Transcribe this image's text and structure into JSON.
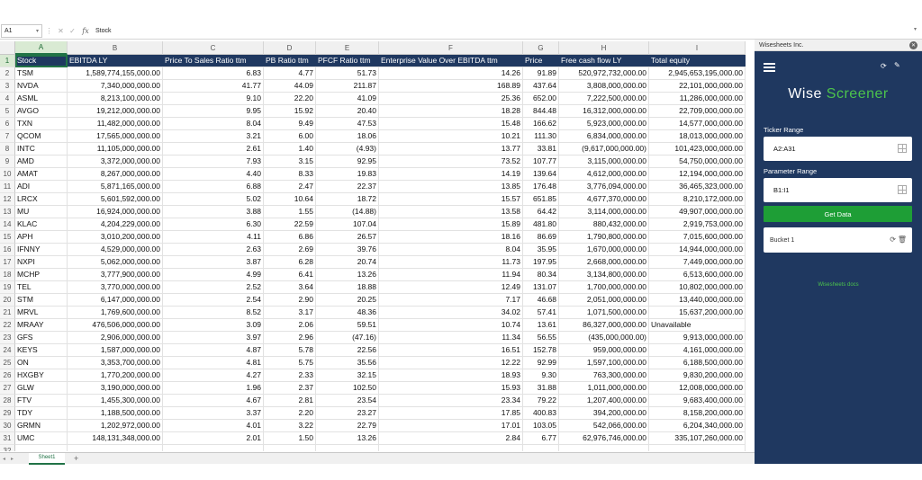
{
  "formula_bar": {
    "name_box": "A1",
    "fx": "fx",
    "content": "Stock"
  },
  "columns": [
    "A",
    "B",
    "C",
    "D",
    "E",
    "F",
    "G",
    "H",
    "I"
  ],
  "headers": [
    "Stock",
    "EBITDA LY",
    "Price To Sales Ratio ttm",
    "PB Ratio ttm",
    "PFCF Ratio ttm",
    "Enterprise Value Over EBITDA ttm",
    "Price",
    "Free cash flow LY",
    "Total equity"
  ],
  "rows": [
    [
      "TSM",
      "1,589,774,155,000.00",
      "6.83",
      "4.77",
      "51.73",
      "14.26",
      "91.89",
      "520,972,732,000.00",
      "2,945,653,195,000.00"
    ],
    [
      "NVDA",
      "7,340,000,000.00",
      "41.77",
      "44.09",
      "211.87",
      "168.89",
      "437.64",
      "3,808,000,000.00",
      "22,101,000,000.00"
    ],
    [
      "ASML",
      "8,213,100,000.00",
      "9.10",
      "22.20",
      "41.09",
      "25.36",
      "652.00",
      "7,222,500,000.00",
      "11,286,000,000.00"
    ],
    [
      "AVGO",
      "19,212,000,000.00",
      "9.95",
      "15.92",
      "20.40",
      "18.28",
      "844.48",
      "16,312,000,000.00",
      "22,709,000,000.00"
    ],
    [
      "TXN",
      "11,482,000,000.00",
      "8.04",
      "9.49",
      "47.53",
      "15.48",
      "166.62",
      "5,923,000,000.00",
      "14,577,000,000.00"
    ],
    [
      "QCOM",
      "17,565,000,000.00",
      "3.21",
      "6.00",
      "18.06",
      "10.21",
      "111.30",
      "6,834,000,000.00",
      "18,013,000,000.00"
    ],
    [
      "INTC",
      "11,105,000,000.00",
      "2.61",
      "1.40",
      "(4.93)",
      "13.77",
      "33.81",
      "(9,617,000,000.00)",
      "101,423,000,000.00"
    ],
    [
      "AMD",
      "3,372,000,000.00",
      "7.93",
      "3.15",
      "92.95",
      "73.52",
      "107.77",
      "3,115,000,000.00",
      "54,750,000,000.00"
    ],
    [
      "AMAT",
      "8,267,000,000.00",
      "4.40",
      "8.33",
      "19.83",
      "14.19",
      "139.64",
      "4,612,000,000.00",
      "12,194,000,000.00"
    ],
    [
      "ADI",
      "5,871,165,000.00",
      "6.88",
      "2.47",
      "22.37",
      "13.85",
      "176.48",
      "3,776,094,000.00",
      "36,465,323,000.00"
    ],
    [
      "LRCX",
      "5,601,592,000.00",
      "5.02",
      "10.64",
      "18.72",
      "15.57",
      "651.85",
      "4,677,370,000.00",
      "8,210,172,000.00"
    ],
    [
      "MU",
      "16,924,000,000.00",
      "3.88",
      "1.55",
      "(14.88)",
      "13.58",
      "64.42",
      "3,114,000,000.00",
      "49,907,000,000.00"
    ],
    [
      "KLAC",
      "4,204,229,000.00",
      "6.30",
      "22.59",
      "107.04",
      "15.89",
      "481.80",
      "880,432,000.00",
      "2,919,753,000.00"
    ],
    [
      "APH",
      "3,010,200,000.00",
      "4.11",
      "6.86",
      "26.57",
      "18.16",
      "86.69",
      "1,790,800,000.00",
      "7,015,600,000.00"
    ],
    [
      "IFNNY",
      "4,529,000,000.00",
      "2.63",
      "2.69",
      "39.76",
      "8.04",
      "35.95",
      "1,670,000,000.00",
      "14,944,000,000.00"
    ],
    [
      "NXPI",
      "5,062,000,000.00",
      "3.87",
      "6.28",
      "20.74",
      "11.73",
      "197.95",
      "2,668,000,000.00",
      "7,449,000,000.00"
    ],
    [
      "MCHP",
      "3,777,900,000.00",
      "4.99",
      "6.41",
      "13.26",
      "11.94",
      "80.34",
      "3,134,800,000.00",
      "6,513,600,000.00"
    ],
    [
      "TEL",
      "3,770,000,000.00",
      "2.52",
      "3.64",
      "18.88",
      "12.49",
      "131.07",
      "1,700,000,000.00",
      "10,802,000,000.00"
    ],
    [
      "STM",
      "6,147,000,000.00",
      "2.54",
      "2.90",
      "20.25",
      "7.17",
      "46.68",
      "2,051,000,000.00",
      "13,440,000,000.00"
    ],
    [
      "MRVL",
      "1,769,600,000.00",
      "8.52",
      "3.17",
      "48.36",
      "34.02",
      "57.41",
      "1,071,500,000.00",
      "15,637,200,000.00"
    ],
    [
      "MRAAY",
      "476,506,000,000.00",
      "3.09",
      "2.06",
      "59.51",
      "10.74",
      "13.61",
      "86,327,000,000.00",
      "Unavailable"
    ],
    [
      "GFS",
      "2,906,000,000.00",
      "3.97",
      "2.96",
      "(47.16)",
      "11.34",
      "56.55",
      "(435,000,000.00)",
      "9,913,000,000.00"
    ],
    [
      "KEYS",
      "1,587,000,000.00",
      "4.87",
      "5.78",
      "22.56",
      "16.51",
      "152.78",
      "959,000,000.00",
      "4,161,000,000.00"
    ],
    [
      "ON",
      "3,353,700,000.00",
      "4.81",
      "5.75",
      "35.56",
      "12.22",
      "92.99",
      "1,597,100,000.00",
      "6,188,500,000.00"
    ],
    [
      "HXGBY",
      "1,770,200,000.00",
      "4.27",
      "2.33",
      "32.15",
      "18.93",
      "9.30",
      "763,300,000.00",
      "9,830,200,000.00"
    ],
    [
      "GLW",
      "3,190,000,000.00",
      "1.96",
      "2.37",
      "102.50",
      "15.93",
      "31.88",
      "1,011,000,000.00",
      "12,008,000,000.00"
    ],
    [
      "FTV",
      "1,455,300,000.00",
      "4.67",
      "2.81",
      "23.54",
      "23.34",
      "79.22",
      "1,207,400,000.00",
      "9,683,400,000.00"
    ],
    [
      "TDY",
      "1,188,500,000.00",
      "3.37",
      "2.20",
      "23.27",
      "17.85",
      "400.83",
      "394,200,000.00",
      "8,158,200,000.00"
    ],
    [
      "GRMN",
      "1,202,972,000.00",
      "4.01",
      "3.22",
      "22.79",
      "17.01",
      "103.05",
      "542,066,000.00",
      "6,204,340,000.00"
    ],
    [
      "UMC",
      "148,131,348,000.00",
      "2.01",
      "1.50",
      "13.26",
      "2.84",
      "6.77",
      "62,976,746,000.00",
      "335,107,260,000.00"
    ]
  ],
  "row_numbers": [
    "1",
    "2",
    "3",
    "4",
    "5",
    "6",
    "7",
    "8",
    "9",
    "10",
    "11",
    "12",
    "13",
    "14",
    "15",
    "16",
    "17",
    "18",
    "19",
    "20",
    "21",
    "22",
    "23",
    "24",
    "25",
    "26",
    "27",
    "28",
    "29",
    "30",
    "31",
    "32"
  ],
  "sheet_tab": "Sheet1",
  "panel": {
    "title": "Wisesheets Inc.",
    "logo_word1": "Wise",
    "logo_word2": "Screener",
    "ticker_label": "Ticker Range",
    "ticker_value": "A2:A31",
    "param_label": "Parameter Range",
    "param_value": "B1:I1",
    "get_data": "Get Data",
    "bucket": "Bucket 1",
    "docs": "Wisesheets docs"
  },
  "colors": {
    "header_bg": "#1f3860",
    "accent_green": "#1e9e36",
    "logo_green": "#4cc34c",
    "excel_green": "#217346"
  }
}
